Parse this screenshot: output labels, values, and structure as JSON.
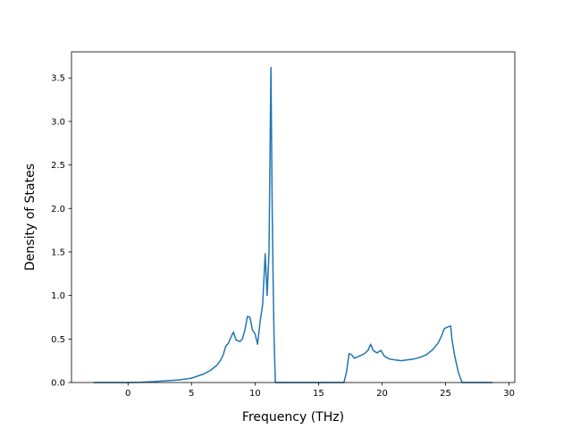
{
  "chart_data": {
    "type": "line",
    "title": "",
    "xlabel": "Frequency (THz)",
    "ylabel": "Density of States",
    "xlim": [
      -4.45,
      30.45
    ],
    "ylim": [
      0,
      3.8
    ],
    "xticks": [
      0,
      5,
      10,
      15,
      20,
      25,
      30
    ],
    "xtick_labels": [
      "0",
      "5",
      "10",
      "15",
      "20",
      "25",
      "30"
    ],
    "yticks": [
      0.0,
      0.5,
      1.0,
      1.5,
      2.0,
      2.5,
      3.0,
      3.5
    ],
    "ytick_labels": [
      "0.0",
      "0.5",
      "1.0",
      "1.5",
      "2.0",
      "2.5",
      "3.0",
      "3.5"
    ],
    "grid": false,
    "legend": "none",
    "series_color": "#1f77b4",
    "series": [
      {
        "x": [
          -2.7,
          0.0,
          1.0,
          2.0,
          3.0,
          4.0,
          5.0,
          6.0,
          6.5,
          7.0,
          7.3,
          7.5,
          7.7,
          7.9,
          8.1,
          8.3,
          8.5,
          8.8,
          9.0,
          9.2,
          9.4,
          9.6,
          9.8,
          10.0,
          10.2,
          10.4,
          10.6,
          10.8,
          10.95,
          11.1,
          11.25,
          11.35,
          11.42,
          11.5,
          11.6,
          12.0,
          14.0,
          16.0,
          17.0,
          17.2,
          17.4,
          17.6,
          17.8,
          18.0,
          18.3,
          18.6,
          18.9,
          19.1,
          19.3,
          19.6,
          19.9,
          20.2,
          20.6,
          21.0,
          21.5,
          22.0,
          22.5,
          23.0,
          23.5,
          24.0,
          24.4,
          24.7,
          24.9,
          25.2,
          25.4,
          25.5,
          25.7,
          26.0,
          26.3,
          28.7
        ],
        "y": [
          0.0,
          0.0,
          0.003,
          0.01,
          0.02,
          0.03,
          0.05,
          0.1,
          0.14,
          0.2,
          0.26,
          0.32,
          0.42,
          0.45,
          0.52,
          0.58,
          0.49,
          0.47,
          0.5,
          0.6,
          0.76,
          0.75,
          0.6,
          0.56,
          0.44,
          0.7,
          0.9,
          1.48,
          1.0,
          1.5,
          3.62,
          2.0,
          1.2,
          0.5,
          0.0,
          0.0,
          0.0,
          0.0,
          0.0,
          0.12,
          0.33,
          0.32,
          0.28,
          0.29,
          0.31,
          0.33,
          0.37,
          0.44,
          0.37,
          0.34,
          0.37,
          0.3,
          0.27,
          0.26,
          0.25,
          0.26,
          0.27,
          0.29,
          0.32,
          0.38,
          0.45,
          0.54,
          0.62,
          0.64,
          0.65,
          0.5,
          0.32,
          0.12,
          0.0,
          0.0
        ]
      }
    ]
  }
}
